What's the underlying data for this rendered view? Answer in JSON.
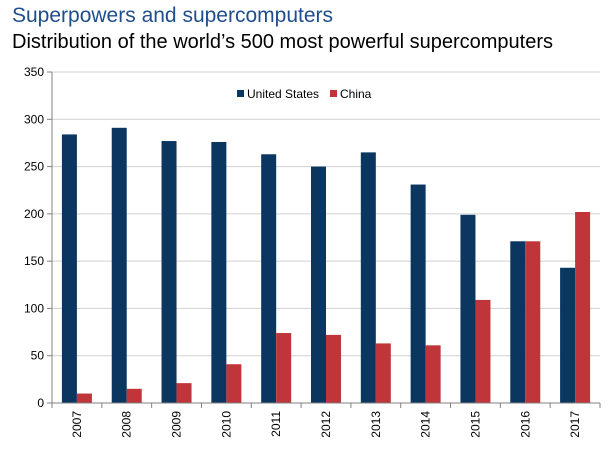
{
  "title": "Superpowers and supercomputers",
  "subtitle": "Distribution of the world’s 500 most powerful supercomputers",
  "colors": {
    "us": "#0b3660",
    "china": "#c0353a",
    "title": "#1f4e8c",
    "grid": "#d0d0d0"
  },
  "chart_data": {
    "type": "bar",
    "categories": [
      "2007",
      "2008",
      "2009",
      "2010",
      "2011",
      "2012",
      "2013",
      "2014",
      "2015",
      "2016",
      "2017"
    ],
    "series": [
      {
        "name": "United States",
        "values": [
          284,
          291,
          277,
          276,
          263,
          250,
          265,
          231,
          199,
          171,
          143
        ]
      },
      {
        "name": "China",
        "values": [
          10,
          15,
          21,
          41,
          74,
          72,
          63,
          61,
          109,
          171,
          202
        ]
      }
    ],
    "yticks": [
      "0",
      "50",
      "100",
      "150",
      "200",
      "250",
      "300",
      "350"
    ],
    "ylim": [
      0,
      350
    ],
    "grid": true,
    "legend_position": "top-center"
  }
}
